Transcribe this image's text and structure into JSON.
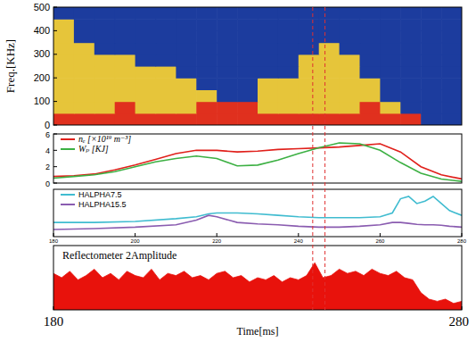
{
  "markers": {
    "x": [
      243.5,
      246.5
    ],
    "color": "#e03030",
    "line_style": "dashed"
  },
  "chart_data": [
    {
      "type": "heatmap",
      "y_label": "Freq.[KHz]",
      "xlim": [
        180,
        280
      ],
      "ylim": [
        0,
        500
      ],
      "yticks": [
        0,
        100,
        200,
        300,
        400,
        500
      ],
      "tick_labels": "y",
      "x_bins": [
        180,
        185,
        190,
        195,
        200,
        205,
        210,
        215,
        220,
        225,
        230,
        235,
        240,
        245,
        250,
        255,
        260,
        265,
        270,
        275,
        280
      ],
      "y_bins": [
        0,
        50,
        100,
        150,
        200,
        250,
        300,
        350,
        400,
        450,
        500
      ],
      "zlim": [
        0,
        2
      ],
      "colors": [
        "#1c3c9e",
        "#e6c53a",
        "#e0301e"
      ],
      "cells": [
        [
          2,
          2,
          2,
          2,
          2,
          2,
          2,
          2,
          2,
          2,
          2,
          2,
          2,
          2,
          2,
          2,
          2,
          2,
          0,
          0
        ],
        [
          1,
          1,
          1,
          2,
          1,
          1,
          1,
          2,
          2,
          2,
          1,
          1,
          1,
          1,
          1,
          2,
          1,
          0,
          0,
          0
        ],
        [
          1,
          1,
          1,
          1,
          1,
          1,
          1,
          1,
          0,
          0,
          1,
          1,
          1,
          1,
          1,
          1,
          0,
          0,
          0,
          0
        ],
        [
          1,
          1,
          1,
          1,
          1,
          1,
          1,
          0,
          0,
          0,
          1,
          1,
          1,
          1,
          1,
          1,
          0,
          0,
          0,
          0
        ],
        [
          1,
          1,
          1,
          1,
          1,
          1,
          0,
          0,
          0,
          0,
          0,
          0,
          1,
          1,
          1,
          0,
          0,
          0,
          0,
          0
        ],
        [
          1,
          1,
          1,
          1,
          0,
          0,
          0,
          0,
          0,
          0,
          0,
          0,
          1,
          1,
          1,
          0,
          0,
          0,
          0,
          0
        ],
        [
          1,
          1,
          0,
          0,
          0,
          0,
          0,
          0,
          0,
          0,
          0,
          0,
          0,
          1,
          0,
          0,
          0,
          0,
          0,
          0
        ],
        [
          1,
          0,
          0,
          0,
          0,
          0,
          0,
          0,
          0,
          0,
          0,
          0,
          0,
          0,
          0,
          0,
          0,
          0,
          0,
          0
        ],
        [
          1,
          0,
          0,
          0,
          0,
          0,
          0,
          0,
          0,
          0,
          0,
          0,
          0,
          0,
          0,
          0,
          0,
          0,
          0,
          0
        ],
        [
          0,
          0,
          0,
          0,
          0,
          0,
          0,
          0,
          0,
          0,
          0,
          0,
          0,
          0,
          0,
          0,
          0,
          0,
          0,
          0
        ]
      ]
    },
    {
      "type": "line",
      "xlim": [
        180,
        280
      ],
      "ylim": [
        0,
        6
      ],
      "yticks": [
        0,
        2,
        4,
        6
      ],
      "tick_labels": "y",
      "legend": "upper left",
      "x": [
        180,
        185,
        190,
        195,
        200,
        205,
        210,
        215,
        220,
        225,
        230,
        235,
        240,
        245,
        250,
        255,
        260,
        265,
        270,
        275,
        280
      ],
      "series": [
        {
          "name": "nₑ [×10¹⁹ m⁻³]",
          "color": "#e0201b",
          "values": [
            0.8,
            0.9,
            1.1,
            1.6,
            2.2,
            2.9,
            3.6,
            4.0,
            4.0,
            3.8,
            3.9,
            4.1,
            4.2,
            4.3,
            4.4,
            4.6,
            4.8,
            3.8,
            2.0,
            1.0,
            0.5
          ]
        },
        {
          "name": "Wₚ [KJ]",
          "color": "#3cb043",
          "values": [
            0.6,
            0.8,
            1.0,
            1.4,
            2.0,
            2.6,
            3.0,
            3.3,
            3.0,
            2.1,
            2.2,
            2.8,
            3.6,
            4.3,
            4.9,
            4.8,
            4.0,
            2.5,
            1.2,
            0.5,
            0.2
          ]
        }
      ]
    },
    {
      "type": "line",
      "xlim": [
        180,
        280
      ],
      "ylim": [
        0,
        1
      ],
      "xticks": [
        180,
        200,
        220,
        240,
        260,
        280
      ],
      "tick_labels": "x",
      "legend": "upper left",
      "x": [
        180,
        190,
        200,
        210,
        215,
        218,
        220,
        225,
        230,
        235,
        240,
        245,
        250,
        255,
        260,
        263,
        265,
        267,
        269,
        271,
        273,
        275,
        277,
        280
      ],
      "series": [
        {
          "name": "HALPHA7.5",
          "color": "#40bcd0",
          "values": [
            0.3,
            0.3,
            0.32,
            0.38,
            0.42,
            0.48,
            0.5,
            0.5,
            0.48,
            0.45,
            0.42,
            0.4,
            0.4,
            0.4,
            0.42,
            0.5,
            0.8,
            0.85,
            0.7,
            0.75,
            0.85,
            0.7,
            0.55,
            0.45
          ]
        },
        {
          "name": "HALPHA15.5",
          "color": "#8a5cb0",
          "values": [
            0.15,
            0.17,
            0.2,
            0.25,
            0.35,
            0.45,
            0.42,
            0.3,
            0.27,
            0.25,
            0.22,
            0.2,
            0.2,
            0.22,
            0.25,
            0.3,
            0.3,
            0.28,
            0.26,
            0.25,
            0.25,
            0.24,
            0.22,
            0.2
          ]
        }
      ]
    },
    {
      "type": "area",
      "title": "Reflectometer 2Amplitude",
      "x_label": "Time[ms]",
      "xlim": [
        180,
        280
      ],
      "ylim": [
        0,
        3
      ],
      "xticks": [
        180,
        280
      ],
      "tick_labels": "x",
      "color": "#e8120c",
      "x": [
        180,
        182,
        184,
        186,
        188,
        190,
        192,
        194,
        196,
        198,
        200,
        202,
        204,
        206,
        208,
        210,
        212,
        214,
        216,
        218,
        220,
        222,
        224,
        226,
        228,
        230,
        232,
        234,
        236,
        238,
        240,
        242,
        244,
        246,
        248,
        250,
        252,
        254,
        256,
        258,
        260,
        262,
        264,
        266,
        268,
        270,
        272,
        274,
        276,
        278,
        280
      ],
      "values": [
        1.7,
        1.5,
        1.8,
        1.4,
        1.6,
        1.9,
        1.5,
        1.7,
        1.4,
        1.8,
        1.6,
        1.5,
        1.9,
        1.4,
        1.7,
        1.6,
        1.8,
        1.5,
        1.6,
        1.4,
        1.7,
        1.8,
        1.5,
        1.6,
        1.3,
        1.5,
        1.4,
        1.6,
        1.3,
        1.5,
        1.4,
        1.6,
        2.2,
        1.5,
        1.6,
        1.9,
        1.7,
        1.8,
        1.6,
        1.9,
        1.7,
        1.6,
        1.8,
        1.5,
        1.4,
        0.8,
        0.5,
        0.4,
        0.5,
        0.3,
        0.4
      ]
    }
  ]
}
